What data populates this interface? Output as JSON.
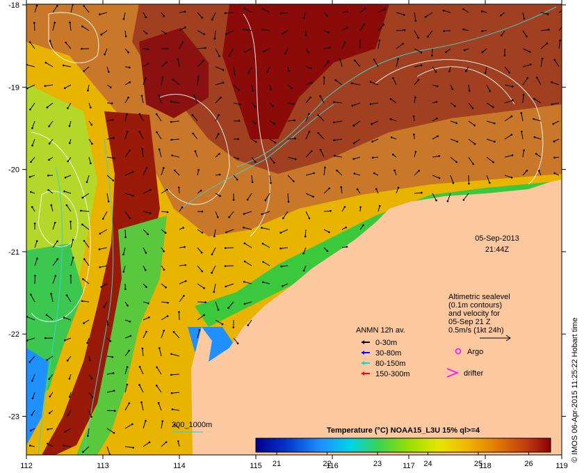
{
  "map": {
    "x_ticks": [
      "112",
      "113",
      "114",
      "115",
      "116",
      "117",
      "118",
      "119"
    ],
    "y_ticks": [
      "-18",
      "-19",
      "-20",
      "-21",
      "-22",
      "-23"
    ],
    "land_color": "#fcc8a0"
  },
  "timestamp": {
    "date": "05-Sep-2013",
    "time": "21:44Z"
  },
  "altimetry_note": {
    "line1": "Altimetric sealevel",
    "line2": "(0.1m contours)",
    "line3": "and velocity for",
    "line4": "05-Sep 21 Z",
    "line5": "0.5m/s (1kt 24h)"
  },
  "legend": {
    "title": "ANMN 12h av.",
    "items": [
      {
        "label": "0-30m",
        "color": "#000000"
      },
      {
        "label": "30-80m",
        "color": "#0000ff"
      },
      {
        "label": "80-150m",
        "color": "#00d8d8"
      },
      {
        "label": "150-300m",
        "color": "#ff0000"
      }
    ],
    "argo_label": "Argo",
    "drifter_label": "drifter",
    "marker_color": "#ff00ff"
  },
  "isobath_label": "200_1000m",
  "colorbar": {
    "title": "Temperature (°C) NOAA15_L3U 15% ql>=4",
    "ticks": [
      "21",
      "22",
      "23",
      "24",
      "25",
      "26"
    ]
  },
  "credit": "© IMOS 06-Apr-2015 11:25:22 Hobart time"
}
